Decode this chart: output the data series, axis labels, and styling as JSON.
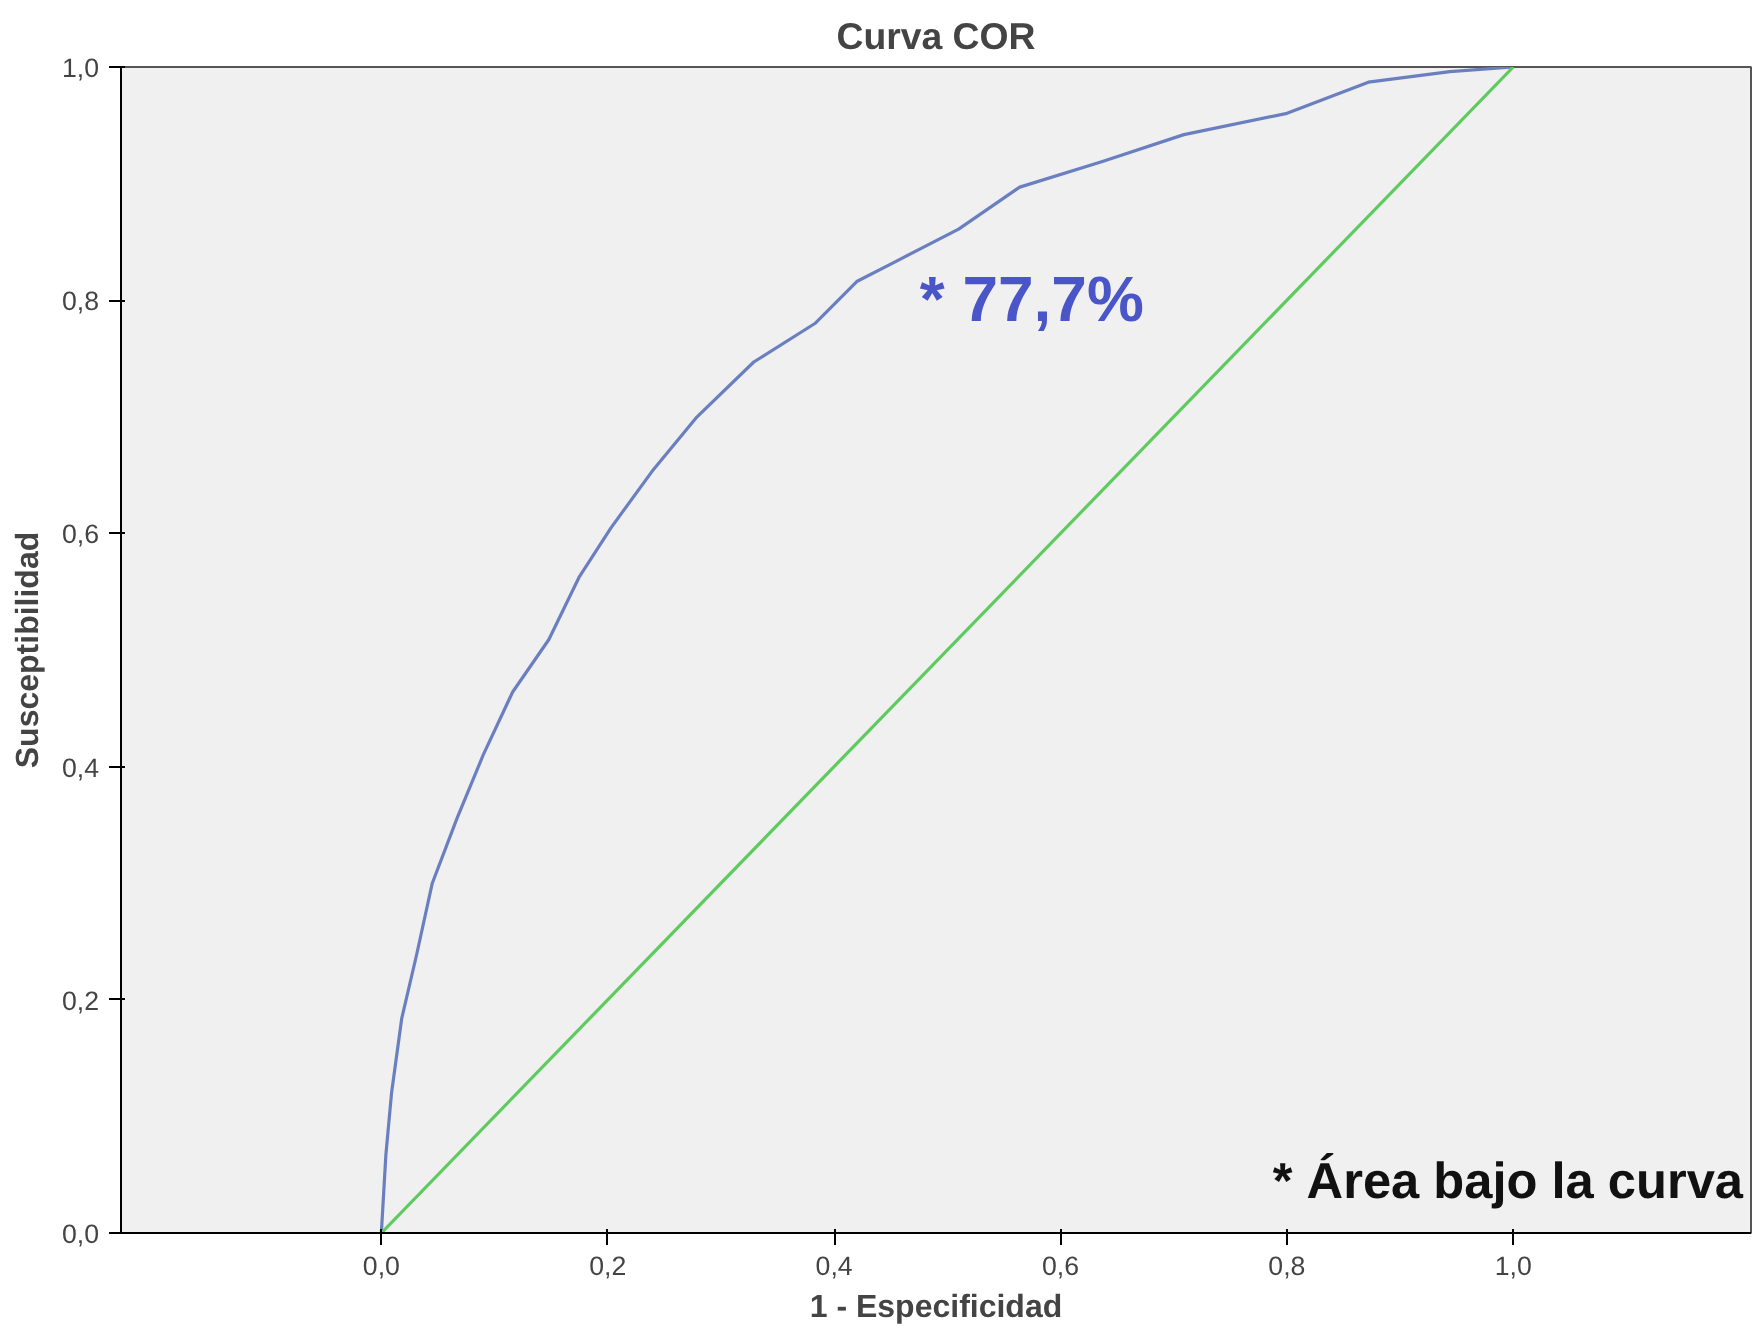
{
  "chart_data": {
    "type": "line",
    "title": "Curva COR",
    "xlabel": "1 - Especificidad",
    "ylabel": "Susceptibilidad",
    "xlim": [
      -0.23,
      1.21
    ],
    "ylim": [
      0,
      1
    ],
    "xticks": [
      {
        "value": 0,
        "label": "0,0"
      },
      {
        "value": 0.2,
        "label": "0,2"
      },
      {
        "value": 0.4,
        "label": "0,4"
      },
      {
        "value": 0.6,
        "label": "0,6"
      },
      {
        "value": 0.8,
        "label": "0,8"
      },
      {
        "value": 1,
        "label": "1,0"
      }
    ],
    "yticks": [
      {
        "value": 0,
        "label": "0,0"
      },
      {
        "value": 0.2,
        "label": "0,2"
      },
      {
        "value": 0.4,
        "label": "0,4"
      },
      {
        "value": 0.6,
        "label": "0,6"
      },
      {
        "value": 0.8,
        "label": "0,8"
      },
      {
        "value": 1,
        "label": "1,0"
      }
    ],
    "series": [
      {
        "color": "#6a7fc0",
        "x": [
          0,
          0.004,
          0.009,
          0.018,
          0.031,
          0.045,
          0.067,
          0.09,
          0.116,
          0.148,
          0.175,
          0.203,
          0.239,
          0.278,
          0.329,
          0.383,
          0.42,
          0.456,
          0.51,
          0.564,
          0.637,
          0.709,
          0.799,
          0.872,
          0.944,
          1
        ],
        "values": [
          0,
          0.067,
          0.12,
          0.184,
          0.238,
          0.3,
          0.356,
          0.41,
          0.464,
          0.509,
          0.563,
          0.605,
          0.653,
          0.699,
          0.747,
          0.78,
          0.816,
          0.834,
          0.861,
          0.897,
          0.919,
          0.942,
          0.96,
          0.987,
          0.996,
          1
        ]
      },
      {
        "color": "#5ecb5e",
        "x": [
          0,
          1
        ],
        "values": [
          0,
          1
        ]
      }
    ],
    "annotations": [
      "* 77,7%",
      "* Área bajo la curva"
    ],
    "grid": false
  }
}
